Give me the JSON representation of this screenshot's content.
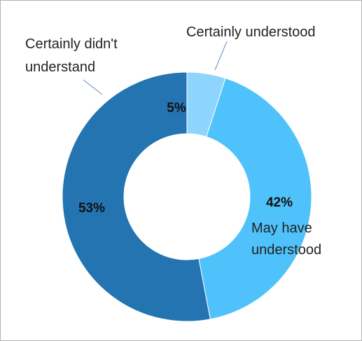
{
  "chart_data": {
    "type": "pie",
    "variant": "donut",
    "title": "",
    "categories": [
      "Certainly understood",
      "May have understood",
      "Certainly didn't understand"
    ],
    "values": [
      5,
      42,
      53
    ],
    "value_labels": [
      "5%",
      "42%",
      "53%"
    ],
    "colors": [
      "#8dd5fd",
      "#4fc2fb",
      "#2474b2"
    ],
    "start_angle_deg": 0,
    "direction": "clockwise",
    "legend": "none",
    "grid": false
  },
  "labels": {
    "certainly_understood": "Certainly understood",
    "may_have_1": "May have",
    "may_have_2": "understood",
    "didnt_1": "Certainly didn't",
    "didnt_2": "understand"
  }
}
